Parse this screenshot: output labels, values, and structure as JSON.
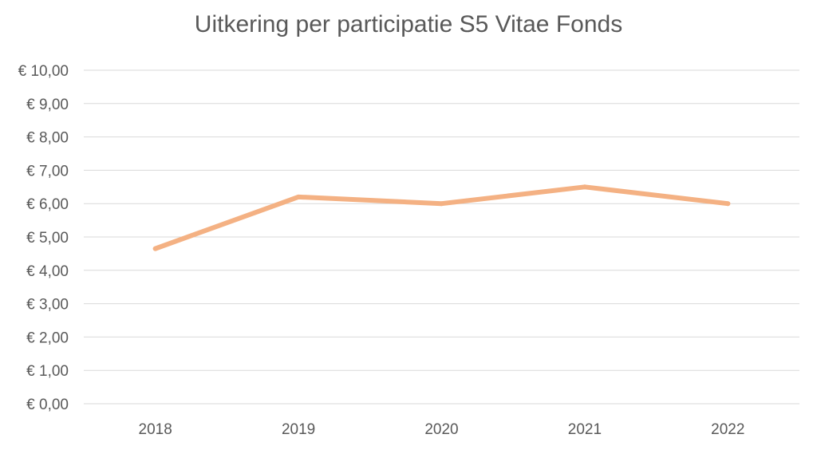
{
  "chart_data": {
    "type": "line",
    "title": "Uitkering per participatie S5 Vitae Fonds",
    "categories": [
      "2018",
      "2019",
      "2020",
      "2021",
      "2022"
    ],
    "series": [
      {
        "values": [
          4.65,
          6.2,
          6.0,
          6.5,
          6.0
        ],
        "color": "#F4B183"
      }
    ],
    "ylim": [
      0,
      10
    ],
    "yticks": [
      0,
      1,
      2,
      3,
      4,
      5,
      6,
      7,
      8,
      9,
      10
    ],
    "ytick_labels": [
      "€ 0,00",
      "€ 1,00",
      "€ 2,00",
      "€ 3,00",
      "€ 4,00",
      "€ 5,00",
      "€ 6,00",
      "€ 7,00",
      "€ 8,00",
      "€ 9,00",
      "€ 10,00"
    ],
    "grid": true,
    "legend": "none",
    "gridline_color": "#D9D9D9",
    "text_color": "#595959"
  }
}
